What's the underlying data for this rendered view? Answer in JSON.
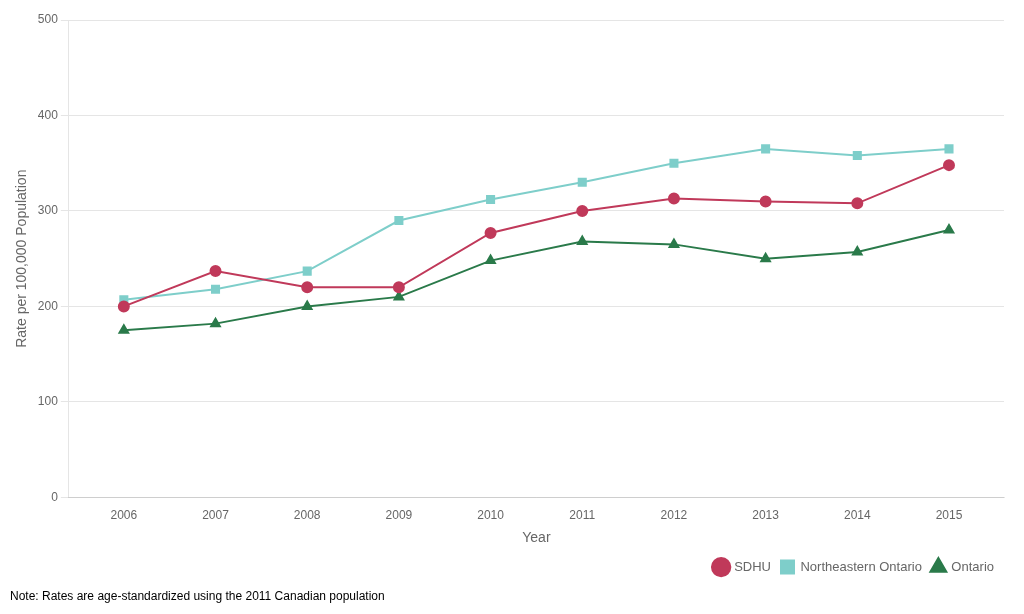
{
  "chart_data": {
    "type": "line",
    "x_label": "Year",
    "y_label": "Rate per 100,000 Population",
    "annotations": [
      "Note: Rates are age-standardized using the 2011 Canadian population"
    ],
    "x": [
      2006,
      2007,
      2008,
      2009,
      2010,
      2011,
      2012,
      2013,
      2014,
      2015
    ],
    "series": [
      {
        "name": "SDHU",
        "color": "#c0395a",
        "marker": "circle",
        "values": [
          200,
          237,
          220,
          220,
          277,
          300,
          313,
          310,
          308,
          348
        ]
      },
      {
        "name": "Northeastern Ontario",
        "color": "#7ececa",
        "marker": "square",
        "values": [
          207,
          218,
          237,
          290,
          312,
          330,
          350,
          365,
          358,
          365
        ]
      },
      {
        "name": "Ontario",
        "color": "#2a7a4a",
        "marker": "triangle",
        "values": [
          175,
          182,
          200,
          210,
          248,
          268,
          265,
          250,
          257,
          280
        ]
      }
    ],
    "xlim": [
      2005.4,
      2015.6
    ],
    "xticks": [
      2006,
      2007,
      2008,
      2009,
      2010,
      2011,
      2012,
      2013,
      2014,
      2015
    ],
    "ylim": [
      0,
      500
    ],
    "yticks": [
      0,
      100,
      200,
      300,
      400,
      500
    ],
    "grid": "y",
    "legend": "lower right"
  }
}
